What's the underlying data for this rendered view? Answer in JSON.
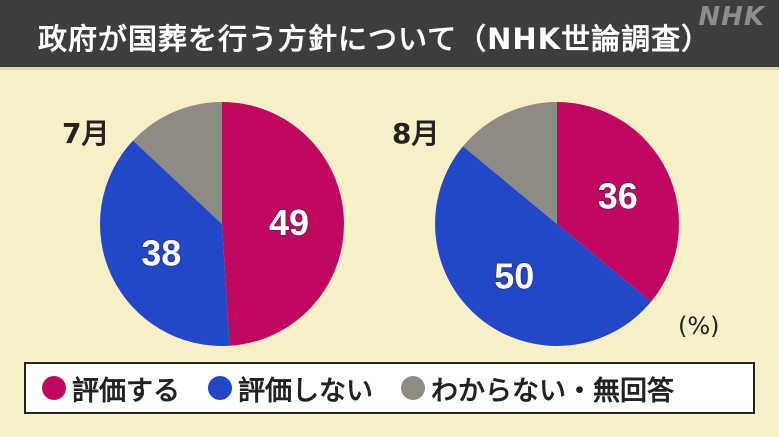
{
  "title": "政府が国葬を行う方針について（NHK世論調査）",
  "logo": "NHK",
  "unit": "(%)",
  "colors": {
    "approve": "#c0075f",
    "disapprove": "#2247c8",
    "unknown": "#8f8b83",
    "background": "#f7f0c6",
    "title_bar": "#3d3d3d"
  },
  "legend": [
    {
      "label": "評価する",
      "color": "#c0075f"
    },
    {
      "label": "評価しない",
      "color": "#2247c8"
    },
    {
      "label": "わからない・無回答",
      "color": "#8f8b83"
    }
  ],
  "chart_data": [
    {
      "type": "pie",
      "title": "7月",
      "categories": [
        "評価する",
        "評価しない",
        "わからない・無回答"
      ],
      "values": [
        49,
        38,
        13
      ],
      "value_labels": [
        "49",
        "38",
        ""
      ]
    },
    {
      "type": "pie",
      "title": "8月",
      "categories": [
        "評価する",
        "評価しない",
        "わからない・無回答"
      ],
      "values": [
        36,
        50,
        14
      ],
      "value_labels": [
        "36",
        "50",
        ""
      ]
    }
  ]
}
